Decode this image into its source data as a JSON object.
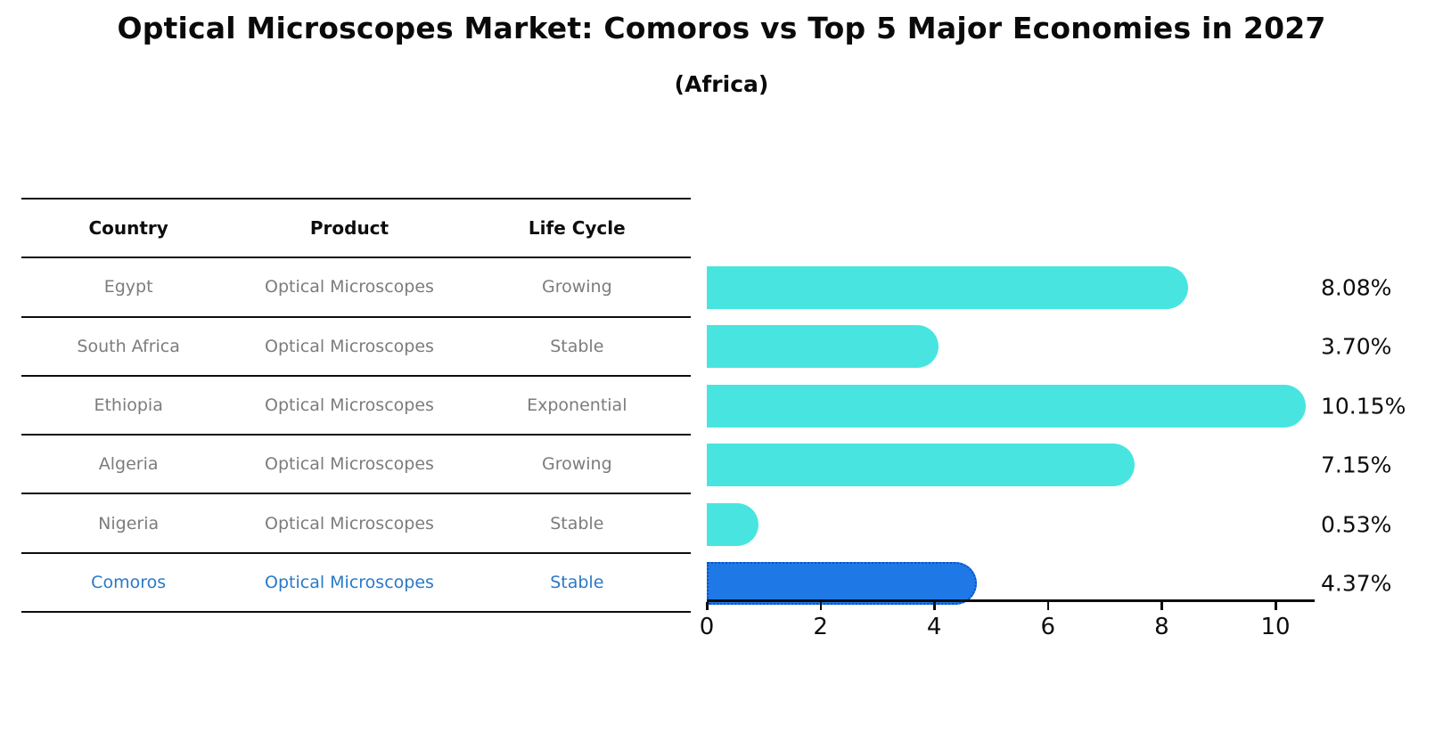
{
  "title": "Optical Microscopes Market: Comoros vs Top 5 Major Economies in 2027",
  "subtitle": "(Africa)",
  "table": {
    "headers": [
      "Country",
      "Product",
      "Life Cycle"
    ],
    "rows": [
      {
        "country": "Egypt",
        "product": "Optical Microscopes",
        "life_cycle": "Growing",
        "highlight": false
      },
      {
        "country": "South Africa",
        "product": "Optical Microscopes",
        "life_cycle": "Stable",
        "highlight": false
      },
      {
        "country": "Ethiopia",
        "product": "Optical Microscopes",
        "life_cycle": "Exponential",
        "highlight": false
      },
      {
        "country": "Algeria",
        "product": "Optical Microscopes",
        "life_cycle": "Growing",
        "highlight": false
      },
      {
        "country": "Nigeria",
        "product": "Optical Microscopes",
        "life_cycle": "Stable",
        "highlight": false
      },
      {
        "country": "Comoros",
        "product": "Optical Microscopes",
        "life_cycle": "Stable",
        "highlight": true
      }
    ]
  },
  "chart_data": {
    "type": "bar",
    "orientation": "horizontal",
    "categories": [
      "Egypt",
      "South Africa",
      "Ethiopia",
      "Algeria",
      "Nigeria",
      "Comoros"
    ],
    "values": [
      8.08,
      3.7,
      10.15,
      7.15,
      0.53,
      4.37
    ],
    "value_labels": [
      "8.08%",
      "3.70%",
      "10.15%",
      "7.15%",
      "0.53%",
      "4.37%"
    ],
    "xlabel": "",
    "ylabel": "",
    "xlim": [
      0,
      10.7
    ],
    "xticks": [
      0,
      2,
      4,
      6,
      8,
      10
    ],
    "grid": false,
    "legend": "none",
    "bar_color": "#48E5E0",
    "highlight_bar_color": "#1E78E6",
    "highlight_bar_edge_color": "#0B50C8",
    "highlight_text_color": "#2979C9",
    "highlight_index": 5
  }
}
